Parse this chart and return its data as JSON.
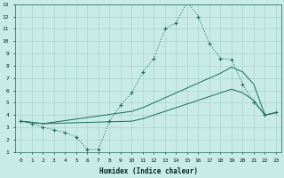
{
  "xlabel": "Humidex (Indice chaleur)",
  "bg_color": "#c8ebe6",
  "grid_color": "#aad4cc",
  "line_color": "#1a6b5a",
  "xlim": [
    -0.5,
    23.5
  ],
  "ylim": [
    1,
    13
  ],
  "xticks": [
    0,
    1,
    2,
    3,
    4,
    5,
    6,
    7,
    8,
    9,
    10,
    11,
    12,
    13,
    14,
    15,
    16,
    17,
    18,
    19,
    20,
    21,
    22,
    23
  ],
  "yticks": [
    1,
    2,
    3,
    4,
    5,
    6,
    7,
    8,
    9,
    10,
    11,
    12,
    13
  ],
  "line1_x": [
    0,
    1,
    2,
    3,
    4,
    5,
    6,
    7,
    8,
    9,
    10,
    11,
    12,
    13,
    14,
    15,
    16,
    17,
    18,
    19,
    20,
    21,
    22,
    23
  ],
  "line1_y": [
    3.5,
    3.3,
    3.0,
    2.8,
    2.6,
    2.2,
    1.2,
    1.2,
    3.5,
    4.8,
    5.8,
    7.5,
    8.6,
    11.0,
    11.5,
    13.2,
    12.0,
    9.8,
    8.6,
    8.5,
    6.5,
    5.0,
    4.0,
    4.2
  ],
  "line2_x": [
    0,
    2,
    10,
    11,
    12,
    13,
    14,
    15,
    16,
    17,
    18,
    19,
    20,
    21,
    22,
    23
  ],
  "line2_y": [
    3.5,
    3.3,
    4.3,
    4.6,
    5.0,
    5.4,
    5.8,
    6.2,
    6.6,
    7.0,
    7.4,
    7.9,
    7.5,
    6.5,
    4.0,
    4.2
  ],
  "line3_x": [
    0,
    2,
    10,
    11,
    12,
    13,
    14,
    15,
    16,
    17,
    18,
    19,
    20,
    21,
    22,
    23
  ],
  "line3_y": [
    3.5,
    3.3,
    3.5,
    3.7,
    4.0,
    4.3,
    4.6,
    4.9,
    5.2,
    5.5,
    5.8,
    6.1,
    5.8,
    5.2,
    4.0,
    4.2
  ]
}
